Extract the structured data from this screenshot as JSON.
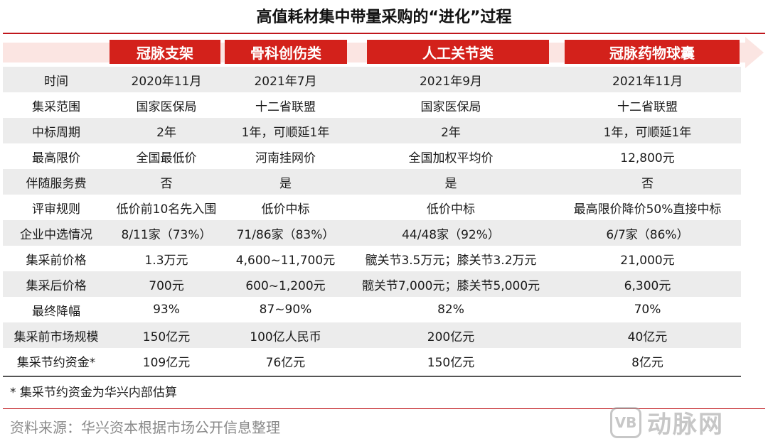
{
  "title": "高值耗材集中带量采购的“进化”过程",
  "columns": [
    "冠脉支架",
    "骨科创伤类",
    "人工关节类",
    "冠脉药物球囊"
  ],
  "rows": [
    {
      "label": "时间",
      "values": [
        "2020年11月",
        "2021年7月",
        "2021年9月",
        "2021年11月"
      ]
    },
    {
      "label": "集采范围",
      "values": [
        "国家医保局",
        "十二省联盟",
        "国家医保局",
        "十二省联盟"
      ]
    },
    {
      "label": "中标周期",
      "values": [
        "2年",
        "1年，可顺延1年",
        "2年",
        "1年，可顺延1年"
      ]
    },
    {
      "label": "最高限价",
      "values": [
        "全国最低价",
        "河南挂网价",
        "全国加权平均价",
        "12,800元"
      ]
    },
    {
      "label": "伴随服务费",
      "values": [
        "否",
        "是",
        "是",
        "否"
      ]
    },
    {
      "label": "评审规则",
      "values": [
        "低价前10名先入围",
        "低价中标",
        "低价中标",
        "最高限价降价50%直接中标"
      ]
    },
    {
      "label": "企业中选情况",
      "values": [
        "8/11家（73%）",
        "71/86家（83%）",
        "44/48家（92%）",
        "6/7家（86%）"
      ]
    },
    {
      "label": "集采前价格",
      "values": [
        "1.3万元",
        "4,600~11,700元",
        "髋关节3.5万元；膝关节3.2万元",
        "21,000元"
      ]
    },
    {
      "label": "集采后价格",
      "values": [
        "700元",
        "600~1,200元",
        "髋关节7,000元；膝关节5,000元",
        "6,300元"
      ]
    },
    {
      "label": "最终降幅",
      "values": [
        "93%",
        "87~90%",
        "82%",
        "70%"
      ]
    },
    {
      "label": "集采前市场规模",
      "values": [
        "150亿元",
        "100亿人民币",
        "200亿元",
        "40亿元"
      ]
    },
    {
      "label": "集采节约资金*",
      "values": [
        "109亿元",
        "76亿元",
        "150亿元",
        "8亿元"
      ]
    }
  ],
  "footnote": "* 集采节约资金为华兴内部估算",
  "source": "资料来源：华兴资本根据市场公开信息整理",
  "watermark": {
    "badge": "VB",
    "text": "动脉网"
  },
  "colors": {
    "accent": "#d3211b",
    "band": "#fbe5e2",
    "shade": "#ececec"
  }
}
